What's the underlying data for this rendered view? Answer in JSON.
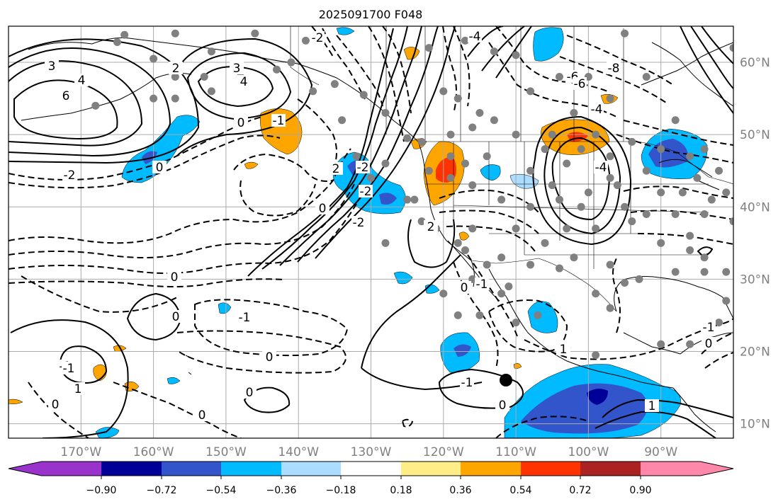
{
  "title": "2025091700 F048",
  "map": {
    "projection": "PlateCarree",
    "lon_range": [
      -180,
      -80
    ],
    "lat_range": [
      8,
      65
    ],
    "lon_ticks": [
      "170°W",
      "160°W",
      "150°W",
      "140°W",
      "130°W",
      "120°W",
      "110°W",
      "100°W",
      "90°W"
    ],
    "lat_ticks": [
      "60°N",
      "50°N",
      "40°N",
      "30°N",
      "20°N",
      "10°N"
    ],
    "gridlines": true,
    "coastlines": true,
    "borders": true,
    "states": true
  },
  "contour_labels": [
    "3",
    "4",
    "6",
    "3",
    "4",
    "2",
    "0",
    "-1",
    "-2",
    "0",
    "-2",
    "-4",
    "-6",
    "-8",
    "-4",
    "-6",
    "-4",
    "-2",
    "2",
    "-2",
    "2",
    "0",
    "-2",
    "-1",
    "0",
    "0",
    "-1",
    "-1",
    "0",
    "1",
    "-1",
    "1",
    "0",
    "0",
    "0",
    "-1",
    "1",
    "0",
    "0",
    "-1",
    "0"
  ],
  "colorbar": {
    "ticks": [
      "−0.90",
      "−0.72",
      "−0.54",
      "−0.36",
      "−0.18",
      "0.18",
      "0.36",
      "0.54",
      "0.72",
      "0.90"
    ],
    "colors": [
      "#9933cc",
      "#000099",
      "#3355cc",
      "#00bbff",
      "#aaddff",
      "#ffffff",
      "#ffee88",
      "#ffa500",
      "#ff3300",
      "#aa2222",
      "#ff88aa"
    ],
    "extend": "both"
  },
  "colors": {
    "shade_neg_strong": "#000099",
    "shade_neg_mid": "#3355cc",
    "shade_neg": "#00bbff",
    "shade_pos": "#ffa500",
    "shade_pos_strong": "#ff3300",
    "station_marker": "#808080",
    "grid": "#aaaaaa"
  }
}
